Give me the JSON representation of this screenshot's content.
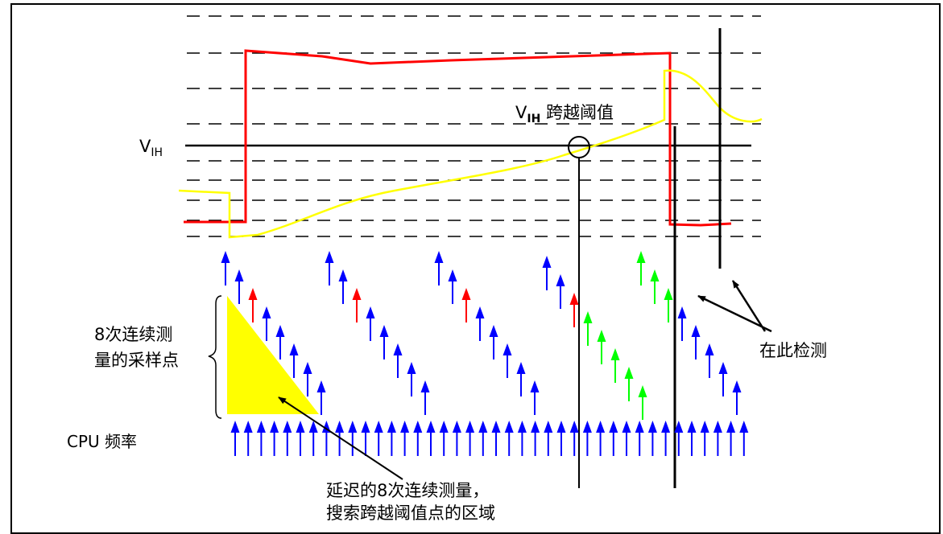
{
  "diagram": {
    "vih_label_main": "V",
    "vih_label_sub": "IH",
    "crossing_label_main": "V",
    "crossing_label_sub": "IH",
    "crossing_label_rest": " 跨越阈值",
    "samples_label_line1": "8次连续测",
    "samples_label_line2": "量的采样点",
    "cpu_label": "CPU 频率",
    "detect_label": "在此检测",
    "delay_label_line1": "延迟的8次连续测量，",
    "delay_label_line2": "搜索跨越阈值点的区域",
    "colors": {
      "red_signal": "#ff0000",
      "yellow_signal": "#ffff00",
      "blue_arrow": "#0000ff",
      "red_arrow": "#ff0000",
      "green_arrow": "#00ff00",
      "triangle_fill": "#ffff00",
      "line": "#000000"
    },
    "sample_groups": [
      {
        "name": "group-1",
        "colors": [
          "blue",
          "blue",
          "red",
          "blue",
          "blue",
          "blue",
          "blue",
          "blue"
        ]
      },
      {
        "name": "group-2",
        "colors": [
          "blue",
          "blue",
          "red",
          "blue",
          "blue",
          "blue",
          "blue",
          "blue"
        ]
      },
      {
        "name": "group-3",
        "colors": [
          "blue",
          "blue",
          "red",
          "blue",
          "blue",
          "blue",
          "blue",
          "blue"
        ]
      },
      {
        "name": "group-4",
        "colors": [
          "blue",
          "blue",
          "red",
          "green",
          "green",
          "green",
          "green",
          "green"
        ]
      },
      {
        "name": "group-5",
        "colors": [
          "green",
          "green",
          "green",
          "blue",
          "blue",
          "blue",
          "blue",
          "blue"
        ]
      }
    ]
  }
}
